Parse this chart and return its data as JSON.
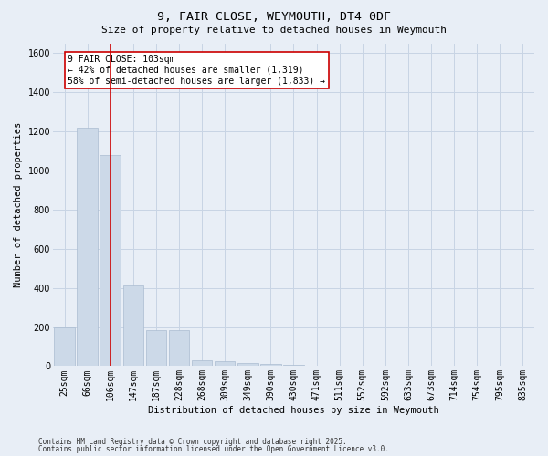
{
  "title1": "9, FAIR CLOSE, WEYMOUTH, DT4 0DF",
  "title2": "Size of property relative to detached houses in Weymouth",
  "xlabel": "Distribution of detached houses by size in Weymouth",
  "ylabel": "Number of detached properties",
  "categories": [
    "25sqm",
    "66sqm",
    "106sqm",
    "147sqm",
    "187sqm",
    "228sqm",
    "268sqm",
    "309sqm",
    "349sqm",
    "390sqm",
    "430sqm",
    "471sqm",
    "511sqm",
    "552sqm",
    "592sqm",
    "633sqm",
    "673sqm",
    "714sqm",
    "754sqm",
    "795sqm",
    "835sqm"
  ],
  "values": [
    200,
    1220,
    1080,
    410,
    185,
    185,
    30,
    25,
    15,
    10,
    7,
    0,
    0,
    0,
    0,
    0,
    0,
    0,
    0,
    0,
    0
  ],
  "bar_color": "#ccd9e8",
  "bar_edge_color": "#aabbd0",
  "redline_x": 2,
  "annotation_text": "9 FAIR CLOSE: 103sqm\n← 42% of detached houses are smaller (1,319)\n58% of semi-detached houses are larger (1,833) →",
  "annotation_box_color": "#ffffff",
  "annotation_box_edge_color": "#cc0000",
  "redline_color": "#cc0000",
  "grid_color": "#c8d4e4",
  "plot_bg_color": "#e8eef6",
  "fig_bg_color": "#e8eef6",
  "ylim": [
    0,
    1650
  ],
  "yticks": [
    0,
    200,
    400,
    600,
    800,
    1000,
    1200,
    1400,
    1600
  ],
  "footer1": "Contains HM Land Registry data © Crown copyright and database right 2025.",
  "footer2": "Contains public sector information licensed under the Open Government Licence v3.0.",
  "title1_fontsize": 9.5,
  "title2_fontsize": 8,
  "tick_fontsize": 7,
  "ylabel_fontsize": 7.5,
  "xlabel_fontsize": 7.5,
  "annotation_fontsize": 7,
  "footer_fontsize": 5.5
}
